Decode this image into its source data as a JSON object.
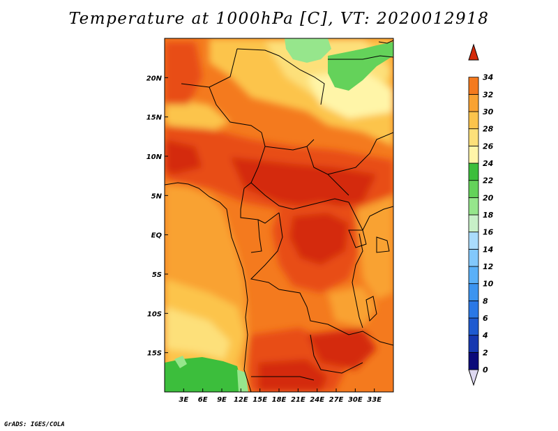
{
  "title": "Temperature at 1000hPa [C], VT: 2020012918",
  "footer": "GrADS: IGES/COLA",
  "map": {
    "lon_range": [
      0,
      36
    ],
    "lat_range": [
      -20,
      25
    ],
    "x_ticks": [
      {
        "value": 3,
        "label": "3E"
      },
      {
        "value": 6,
        "label": "6E"
      },
      {
        "value": 9,
        "label": "9E"
      },
      {
        "value": 12,
        "label": "12E"
      },
      {
        "value": 15,
        "label": "15E"
      },
      {
        "value": 18,
        "label": "18E"
      },
      {
        "value": 21,
        "label": "21E"
      },
      {
        "value": 24,
        "label": "24E"
      },
      {
        "value": 27,
        "label": "27E"
      },
      {
        "value": 30,
        "label": "30E"
      },
      {
        "value": 33,
        "label": "33E"
      }
    ],
    "y_ticks": [
      {
        "value": 20,
        "label": "20N"
      },
      {
        "value": 15,
        "label": "15N"
      },
      {
        "value": 10,
        "label": "10N"
      },
      {
        "value": 5,
        "label": "5N"
      },
      {
        "value": 0,
        "label": "EQ"
      },
      {
        "value": -5,
        "label": "5S"
      },
      {
        "value": -10,
        "label": "10S"
      },
      {
        "value": -15,
        "label": "15S"
      }
    ]
  },
  "colorbar": {
    "levels": [
      "0",
      "2",
      "4",
      "6",
      "8",
      "10",
      "12",
      "14",
      "16",
      "18",
      "20",
      "22",
      "24",
      "26",
      "28",
      "30",
      "32",
      "34"
    ],
    "colors": [
      "#0a0a7a",
      "#1638b0",
      "#1e5ad0",
      "#2a78e6",
      "#3c94f0",
      "#5ab0f8",
      "#82c8fc",
      "#aadcfc",
      "#c8f0c8",
      "#96e68c",
      "#64d25a",
      "#3cbe3c",
      "#fff5a8",
      "#fde07a",
      "#fcc44c",
      "#f9a232",
      "#f47a1e",
      "#e84e12",
      "#d42a0a"
    ],
    "under_color": "#ddd8f0"
  }
}
